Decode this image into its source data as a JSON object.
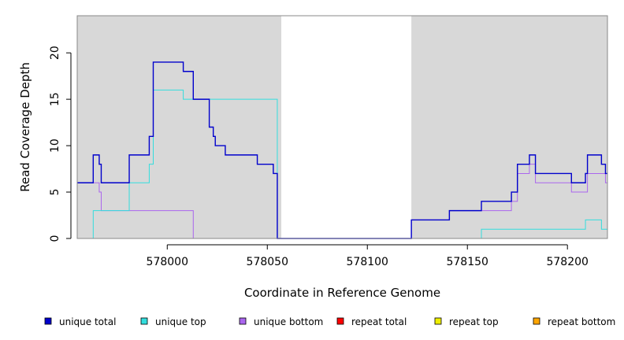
{
  "chart_data": {
    "type": "line",
    "xlabel": "Coordinate in Reference Genome",
    "ylabel": "Read Coverage Depth",
    "xlim": [
      577955,
      578220
    ],
    "ylim": [
      0,
      24
    ],
    "x_ticks": [
      578000,
      578050,
      578100,
      578150,
      578200
    ],
    "y_ticks": [
      0,
      5,
      10,
      15,
      20
    ],
    "grid": false,
    "shaded_regions": [
      [
        577955,
        578057
      ],
      [
        578122,
        578220
      ]
    ],
    "shade_color": "#d8d8d8",
    "legend_position": "bottom",
    "series": [
      {
        "name": "unique total",
        "color": "#0000cc",
        "points": [
          [
            577955,
            6
          ],
          [
            577963,
            9
          ],
          [
            577966,
            8
          ],
          [
            577967,
            6
          ],
          [
            577981,
            9
          ],
          [
            577991,
            11
          ],
          [
            577993,
            19
          ],
          [
            578008,
            18
          ],
          [
            578013,
            15
          ],
          [
            578021,
            12
          ],
          [
            578023,
            11
          ],
          [
            578024,
            10
          ],
          [
            578029,
            9
          ],
          [
            578045,
            8
          ],
          [
            578053,
            7
          ],
          [
            578055,
            0
          ],
          [
            578122,
            2
          ],
          [
            578141,
            3
          ],
          [
            578157,
            4
          ],
          [
            578172,
            5
          ],
          [
            578175,
            8
          ],
          [
            578181,
            9
          ],
          [
            578184,
            7
          ],
          [
            578202,
            6
          ],
          [
            578209,
            7
          ],
          [
            578210,
            9
          ],
          [
            578217,
            8
          ],
          [
            578219,
            7
          ],
          [
            578220,
            7
          ]
        ]
      },
      {
        "name": "unique top",
        "color": "#33dddd",
        "points": [
          [
            577955,
            0
          ],
          [
            577963,
            3
          ],
          [
            577981,
            6
          ],
          [
            577991,
            8
          ],
          [
            577993,
            16
          ],
          [
            578008,
            15
          ],
          [
            578013,
            15
          ],
          [
            578055,
            0
          ],
          [
            578157,
            1
          ],
          [
            578209,
            2
          ],
          [
            578217,
            1
          ],
          [
            578220,
            1
          ]
        ]
      },
      {
        "name": "unique bottom",
        "color": "#aa66ee",
        "points": [
          [
            577955,
            6
          ],
          [
            577966,
            5
          ],
          [
            577967,
            3
          ],
          [
            578013,
            0
          ],
          [
            578122,
            2
          ],
          [
            578141,
            3
          ],
          [
            578157,
            3
          ],
          [
            578172,
            4
          ],
          [
            578175,
            7
          ],
          [
            578181,
            8
          ],
          [
            578184,
            6
          ],
          [
            578202,
            5
          ],
          [
            578210,
            7
          ],
          [
            578219,
            6
          ],
          [
            578220,
            6
          ]
        ]
      },
      {
        "name": "repeat total",
        "color": "#ff0000",
        "points": [
          [
            577955,
            0
          ],
          [
            578220,
            0
          ]
        ]
      },
      {
        "name": "repeat top",
        "color": "#eeee00",
        "points": [
          [
            577955,
            0
          ],
          [
            578220,
            0
          ]
        ]
      },
      {
        "name": "repeat bottom",
        "color": "#ffa500",
        "points": [
          [
            577955,
            0
          ],
          [
            578220,
            0
          ]
        ]
      }
    ]
  }
}
